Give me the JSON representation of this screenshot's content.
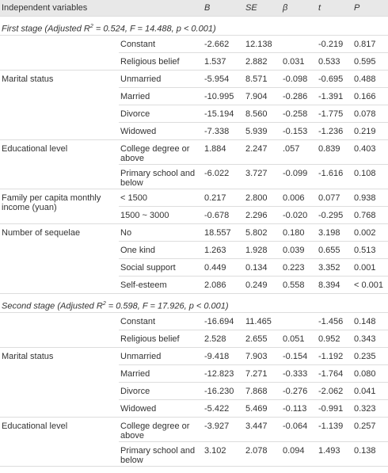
{
  "table": {
    "columns": [
      "Independent variables",
      "B",
      "SE",
      "β",
      "t",
      "P"
    ],
    "sections": [
      {
        "title_parts": [
          "First stage (Adjusted R",
          "2",
          " = 0.524, F = 14.488, p < 0.001)"
        ],
        "groups": [
          {
            "rows": [
              {
                "variable": "Constant",
                "B": "-2.662",
                "SE": "12.138",
                "beta": null,
                "t": "-0.219",
                "P": "0.817"
              },
              {
                "variable": "Religious belief",
                "B": "1.537",
                "SE": "2.882",
                "beta": "0.031",
                "t": "0.533",
                "P": "0.595"
              }
            ]
          },
          {
            "label": "Marital status",
            "rows": [
              {
                "variable": "Unmarried",
                "B": "-5.954",
                "SE": "8.571",
                "beta": "-0.098",
                "t": "-0.695",
                "P": "0.488"
              },
              {
                "variable": "Married",
                "B": "-10.995",
                "SE": "7.904",
                "beta": "-0.286",
                "t": "-1.391",
                "P": "0.166"
              },
              {
                "variable": "Divorce",
                "B": "-15.194",
                "SE": "8.560",
                "beta": "-0.258",
                "t": "-1.775",
                "P": "0.078"
              },
              {
                "variable": "Widowed",
                "B": "-7.338",
                "SE": "5.939",
                "beta": "-0.153",
                "t": "-1.236",
                "P": "0.219"
              }
            ]
          },
          {
            "label": "Educational level",
            "rows": [
              {
                "variable": "College degree or above",
                "B": "1.884",
                "SE": "2.247",
                "beta": ".057",
                "t": "0.839",
                "P": "0.403"
              },
              {
                "variable": "Primary school and below",
                "B": "-6.022",
                "SE": "3.727",
                "beta": "-0.099",
                "t": "-1.616",
                "P": "0.108"
              }
            ]
          },
          {
            "label": "Family per capita monthly income (yuan)",
            "rows": [
              {
                "variable": "< 1500",
                "B": "0.217",
                "SE": "2.800",
                "beta": "0.006",
                "t": "0.077",
                "P": "0.938"
              },
              {
                "variable": "1500 ~ 3000",
                "B": "-0.678",
                "SE": "2.296",
                "beta": "-0.020",
                "t": "-0.295",
                "P": "0.768"
              }
            ]
          },
          {
            "label": "Number of sequelae",
            "rows": [
              {
                "variable": "No",
                "B": "18.557",
                "SE": "5.802",
                "beta": "0.180",
                "t": "3.198",
                "P": "0.002"
              },
              {
                "variable": "One kind",
                "B": "1.263",
                "SE": "1.928",
                "beta": "0.039",
                "t": "0.655",
                "P": "0.513"
              },
              {
                "variable": "Social support",
                "B": "0.449",
                "SE": "0.134",
                "beta": "0.223",
                "t": "3.352",
                "P": "0.001"
              },
              {
                "variable": "Self-esteem",
                "B": "2.086",
                "SE": "0.249",
                "beta": "0.558",
                "t": "8.394",
                "P": "< 0.001"
              }
            ]
          }
        ]
      },
      {
        "title_parts": [
          "Second stage (Adjusted R",
          "2",
          " = 0.598, F = 17.926, p < 0.001)"
        ],
        "groups": [
          {
            "rows": [
              {
                "variable": "Constant",
                "B": "-16.694",
                "SE": "11.465",
                "beta": null,
                "t": "-1.456",
                "P": "0.148"
              },
              {
                "variable": "Religious belief",
                "B": "2.528",
                "SE": "2.655",
                "beta": "0.051",
                "t": "0.952",
                "P": "0.343"
              }
            ]
          },
          {
            "label": "Marital status",
            "rows": [
              {
                "variable": "Unmarried",
                "B": "-9.418",
                "SE": "7.903",
                "beta": "-0.154",
                "t": "-1.192",
                "P": "0.235"
              },
              {
                "variable": "Married",
                "B": "-12.823",
                "SE": "7.271",
                "beta": "-0.333",
                "t": "-1.764",
                "P": "0.080"
              },
              {
                "variable": "Divorce",
                "B": "-16.230",
                "SE": "7.868",
                "beta": "-0.276",
                "t": "-2.062",
                "P": "0.041"
              },
              {
                "variable": "Widowed",
                "B": "-5.422",
                "SE": "5.469",
                "beta": "-0.113",
                "t": "-0.991",
                "P": "0.323"
              }
            ]
          },
          {
            "label": "Educational level",
            "rows": [
              {
                "variable": "College degree or above",
                "B": "-3.927",
                "SE": "3.447",
                "beta": "-0.064",
                "t": "-1.139",
                "P": "0.257"
              },
              {
                "variable": "Primary school and below",
                "B": "3.102",
                "SE": "2.078",
                "beta": "0.094",
                "t": "1.493",
                "P": "0.138"
              }
            ]
          }
        ]
      }
    ]
  }
}
